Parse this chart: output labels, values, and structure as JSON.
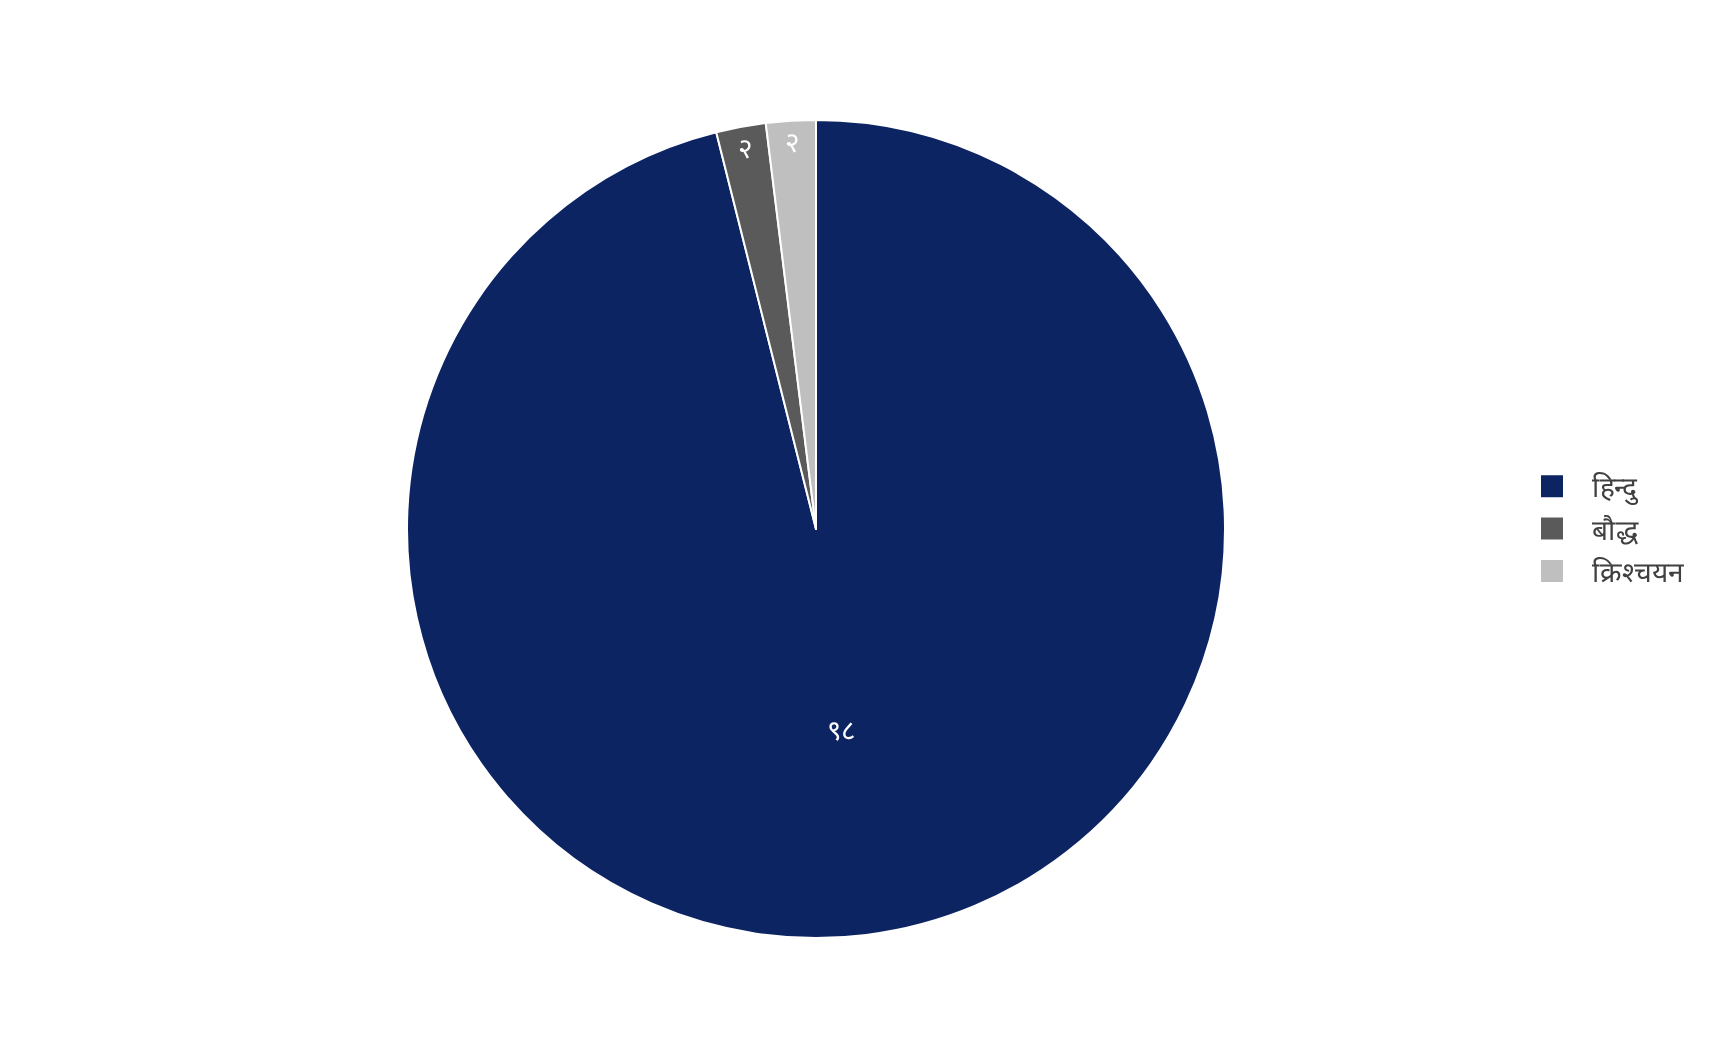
{
  "chart_data": {
    "type": "pie",
    "categories": [
      "हिन्दु",
      "बौद्ध",
      "क्रिश्चयन"
    ],
    "values": [
      98,
      2,
      2
    ],
    "colors": [
      "#0d2463",
      "#5a5a5a",
      "#bfbfbf"
    ],
    "value_labels": [
      "९८",
      "२",
      "२"
    ],
    "legend": "right"
  }
}
